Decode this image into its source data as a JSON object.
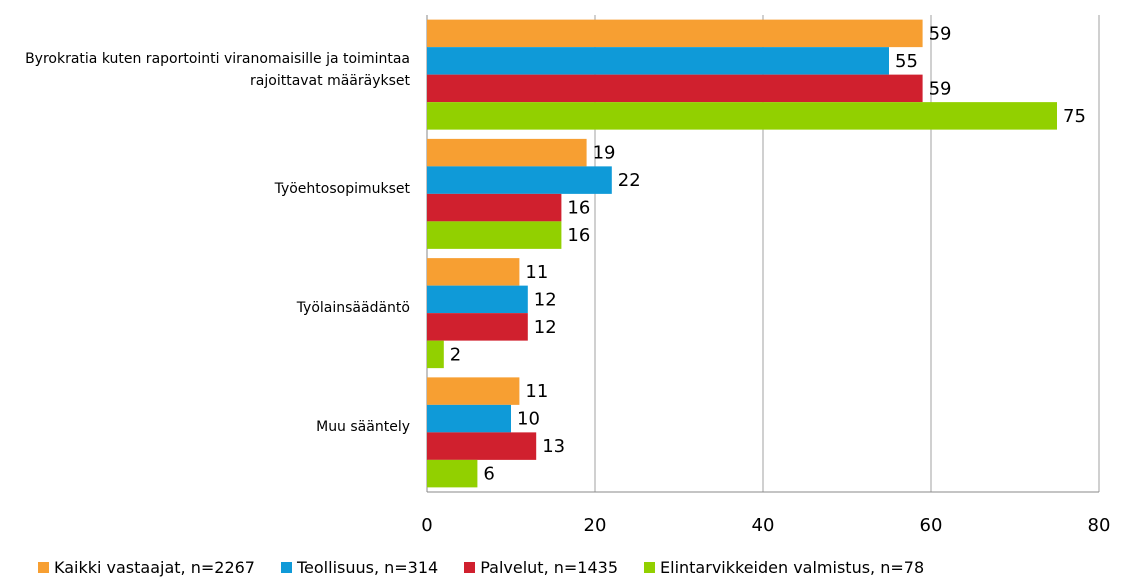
{
  "chart_data": {
    "type": "bar",
    "orientation": "horizontal",
    "categories": [
      "Byrokratia kuten raportointi viranomaisille ja toimintaa rajoittavat määräykset",
      "Työehtosopimukset",
      "Työlainsäädäntö",
      "Muu sääntely"
    ],
    "series": [
      {
        "name": "Kaikki vastaajat, n=2267",
        "color": "#f79f32",
        "values": [
          59,
          19,
          11,
          11
        ]
      },
      {
        "name": "Teollisuus, n=314",
        "color": "#0f9ad8",
        "values": [
          55,
          22,
          12,
          10
        ]
      },
      {
        "name": "Palvelut, n=1435",
        "color": "#d0202e",
        "values": [
          59,
          16,
          12,
          13
        ]
      },
      {
        "name": "Elintarvikkeiden valmistus, n=78",
        "color": "#92d000",
        "values": [
          75,
          16,
          2,
          6
        ]
      }
    ],
    "xlim": [
      0,
      80
    ],
    "xticks": [
      0,
      20,
      40,
      60,
      80
    ],
    "grid": true,
    "legend": "bottom"
  }
}
